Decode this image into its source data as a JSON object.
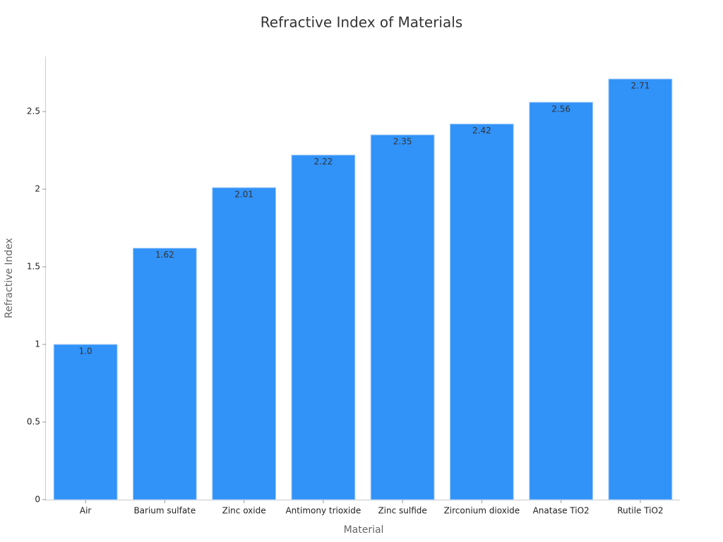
{
  "chart_data": {
    "type": "bar",
    "title": "Refractive Index of Materials",
    "x_label": "Material",
    "y_label": "Refractive Index",
    "categories": [
      "Air",
      "Barium sulfate",
      "Zinc oxide",
      "Antimony trioxide",
      "Zinc sulfide",
      "Zirconium dioxide",
      "Anatase TiO2",
      "Rutile TiO2"
    ],
    "values": [
      1.0,
      1.62,
      2.01,
      2.22,
      2.35,
      2.42,
      2.56,
      2.71
    ],
    "value_labels": [
      "1.0",
      "1.62",
      "2.01",
      "2.22",
      "2.35",
      "2.42",
      "2.56",
      "2.71"
    ],
    "color": "#3192f8",
    "ylim": [
      0,
      2.855
    ],
    "yticks": [
      0,
      0.5,
      1,
      1.5,
      2,
      2.5
    ],
    "grid": false
  }
}
